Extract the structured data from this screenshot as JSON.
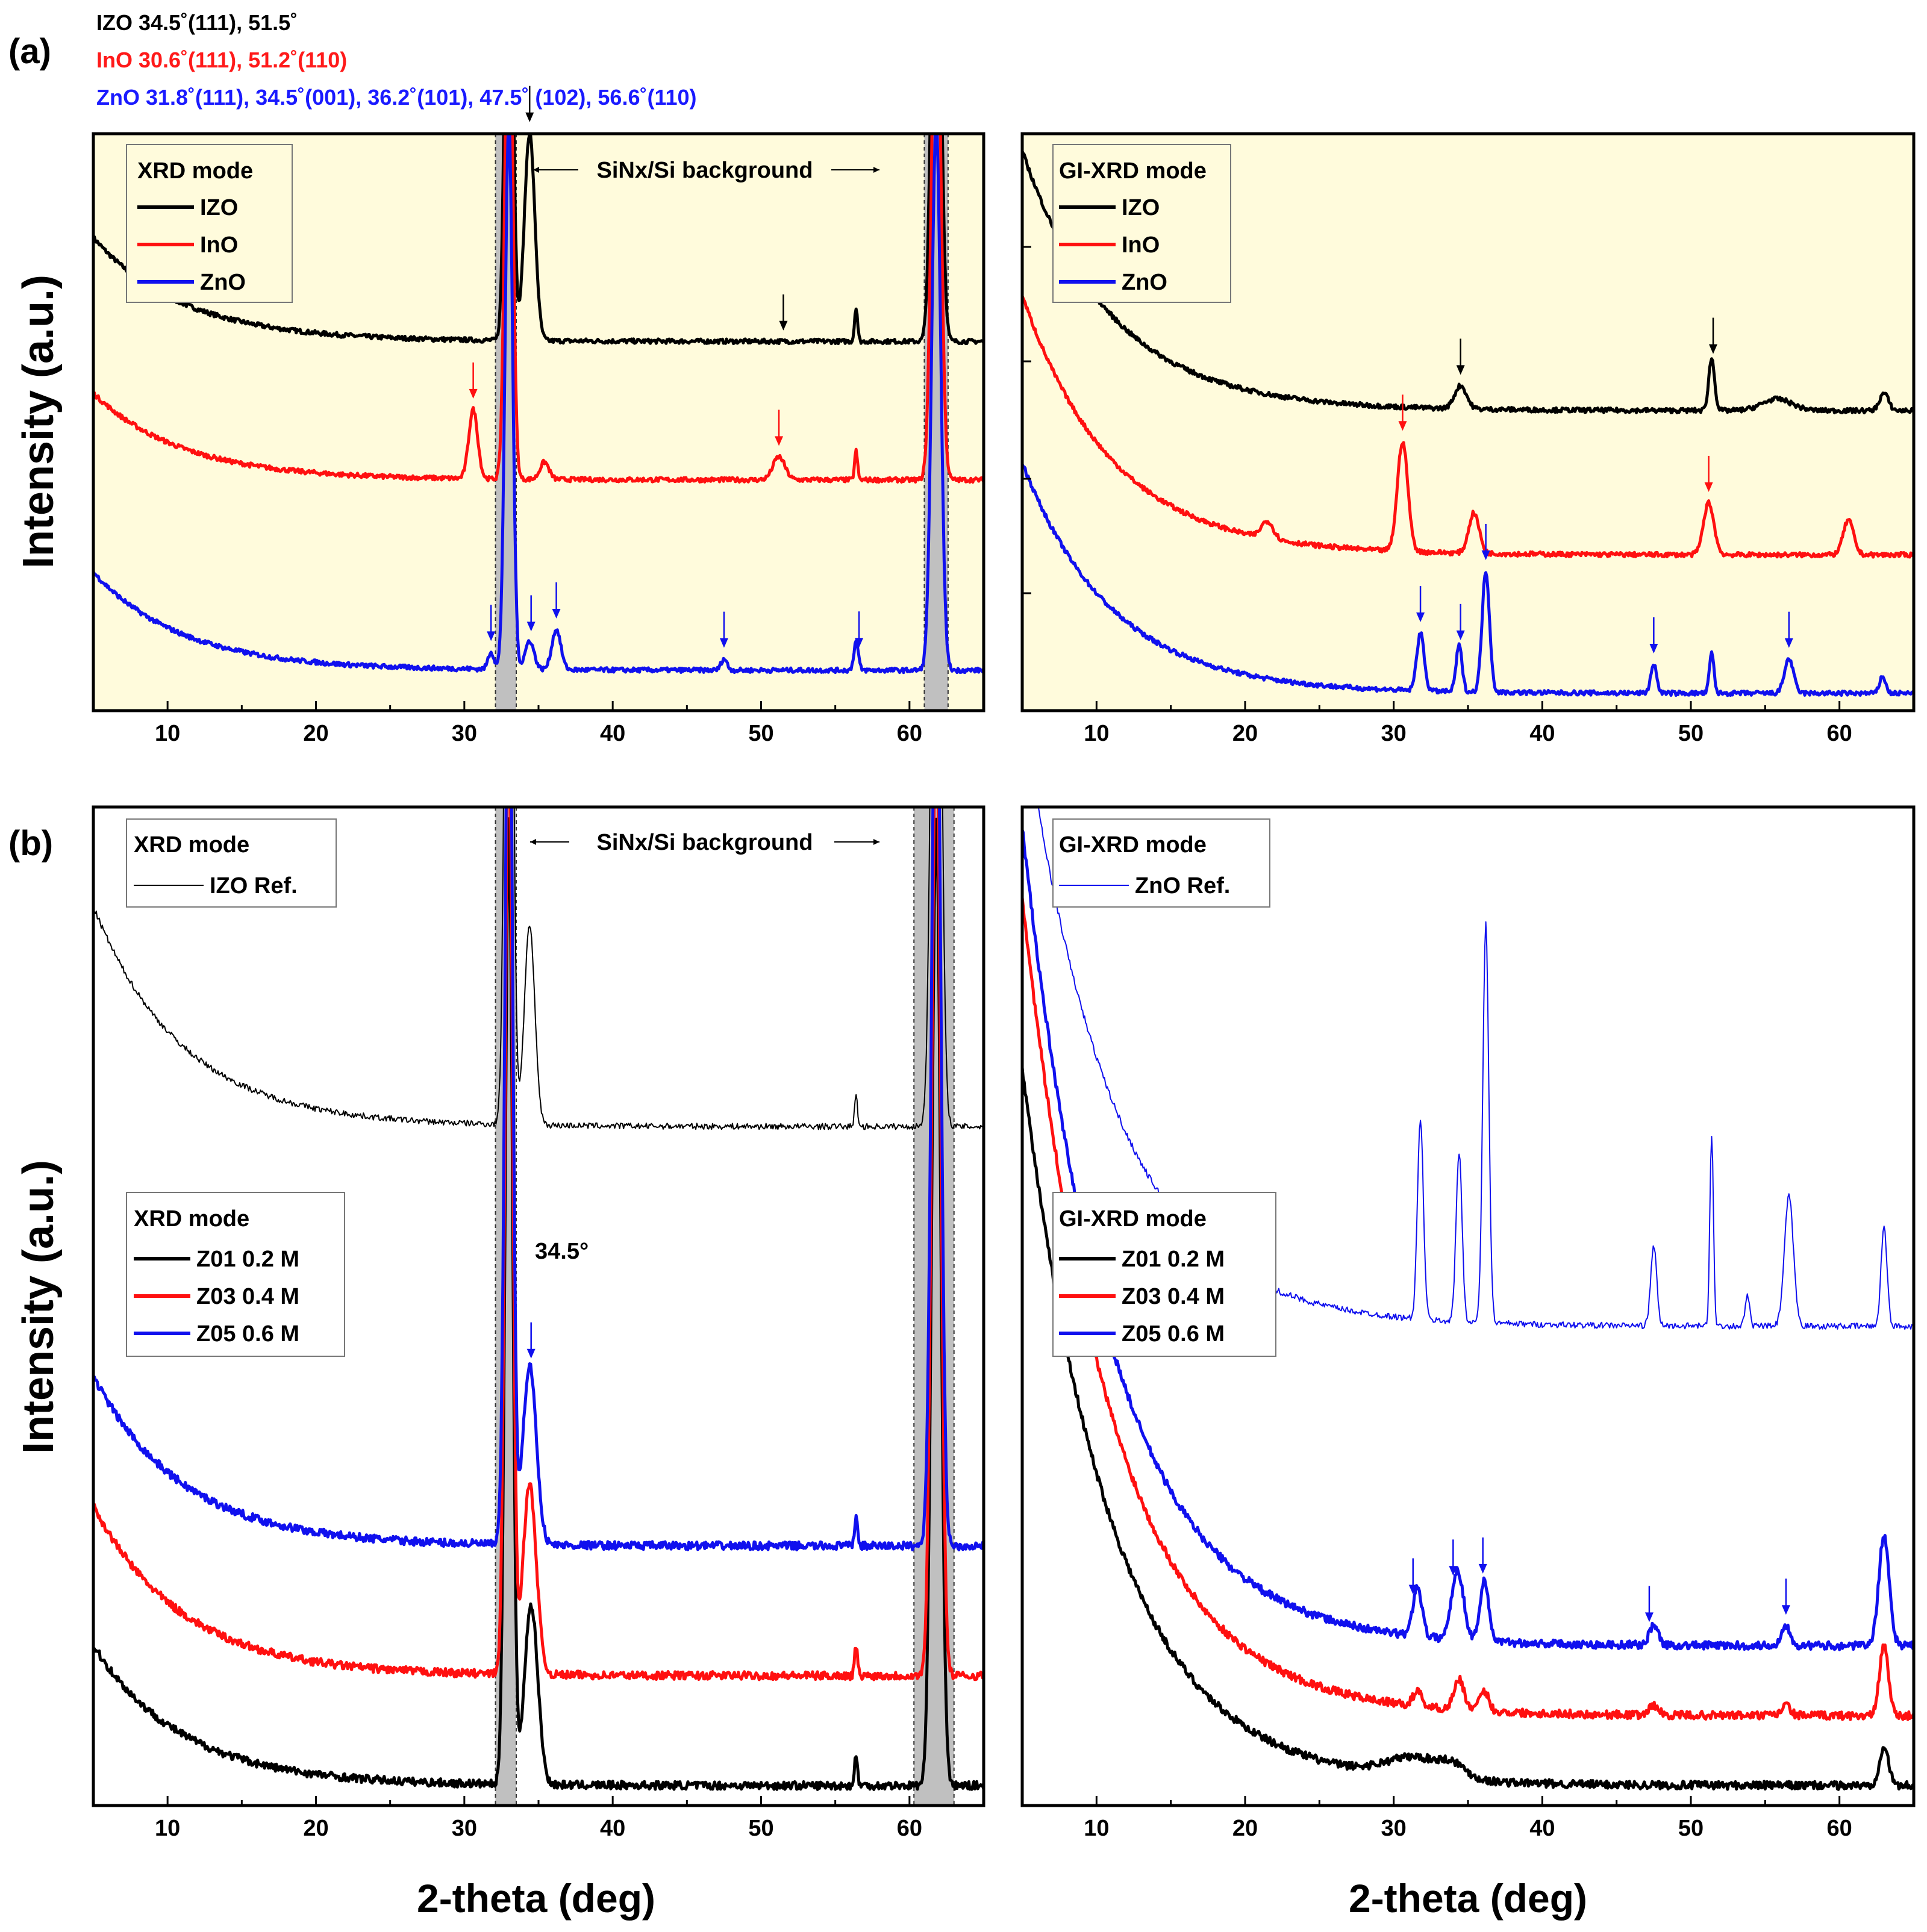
{
  "figure": {
    "panel_a_label": "(a)",
    "panel_b_label": "(b)",
    "header_lines": [
      {
        "text": "IZO 34.5˚(111), 51.5˚",
        "color": "#000000"
      },
      {
        "text": "InO 30.6˚(111), 51.2˚(110)",
        "color": "#ff1a1a"
      },
      {
        "text": "ZnO 31.8˚(111), 34.5˚(001), 36.2˚(101), 47.5˚ (102), 56.6˚(110)",
        "color": "#1a1aff"
      }
    ],
    "ylabel": "Intensity (a.u.)",
    "xlabel": "2-theta (deg)",
    "xticks": [
      "10",
      "20",
      "30",
      "40",
      "50",
      "60"
    ],
    "background_label": "SiNx/Si background",
    "annotation_345": "34.5°",
    "colors": {
      "black": "#000000",
      "red": "#ff1010",
      "blue": "#1010ee",
      "highlight": "#fffbdc",
      "band": "#c0c0c0"
    }
  },
  "chart_data": [
    {
      "id": "a-left",
      "type": "line",
      "mode": "XRD mode",
      "xlabel": "2-theta (deg)",
      "ylabel": "Intensity (a.u.)",
      "xlim": [
        5,
        65
      ],
      "background_bands": [
        [
          32.1,
          33.5
        ],
        [
          61.0,
          62.6
        ]
      ],
      "legend": [
        "IZO",
        "InO",
        "ZnO"
      ],
      "series": [
        {
          "name": "IZO",
          "color": "black",
          "base": 0.64,
          "decay": 0.18,
          "peaks": [
            [
              33.0,
              0.95,
              0.25
            ],
            [
              34.4,
              0.36,
              0.35
            ],
            [
              56.4,
              0.06,
              0.1
            ],
            [
              61.8,
              0.95,
              0.3
            ]
          ],
          "arrows": [
            34.4,
            51.5
          ]
        },
        {
          "name": "InO",
          "color": "red",
          "base": 0.4,
          "decay": 0.15,
          "peaks": [
            [
              30.6,
              0.12,
              0.3
            ],
            [
              33.0,
              0.95,
              0.25
            ],
            [
              35.4,
              0.03,
              0.3
            ],
            [
              51.2,
              0.04,
              0.4
            ],
            [
              56.4,
              0.05,
              0.1
            ],
            [
              61.8,
              0.95,
              0.3
            ]
          ],
          "arrows": [
            30.6,
            51.2
          ]
        },
        {
          "name": "ZnO",
          "color": "blue",
          "base": 0.07,
          "decay": 0.17,
          "peaks": [
            [
              31.8,
              0.03,
              0.2
            ],
            [
              33.0,
              0.95,
              0.25
            ],
            [
              34.4,
              0.05,
              0.3
            ],
            [
              36.2,
              0.07,
              0.3
            ],
            [
              47.5,
              0.02,
              0.2
            ],
            [
              56.4,
              0.05,
              0.15
            ],
            [
              61.8,
              0.95,
              0.3
            ]
          ],
          "arrows": [
            31.8,
            34.5,
            36.2,
            47.5,
            56.6
          ]
        }
      ]
    },
    {
      "id": "a-right",
      "type": "line",
      "mode": "GI-XRD mode",
      "xlabel": "2-theta (deg)",
      "ylabel": "",
      "xlim": [
        5,
        65
      ],
      "legend": [
        "IZO",
        "InO",
        "ZnO"
      ],
      "series": [
        {
          "name": "IZO",
          "color": "black",
          "base": 0.52,
          "decay": 0.45,
          "peaks": [
            [
              34.5,
              0.04,
              0.4
            ],
            [
              51.4,
              0.09,
              0.2
            ],
            [
              55.8,
              0.02,
              1.0
            ],
            [
              63.0,
              0.03,
              0.3
            ]
          ],
          "arrows": [
            34.5,
            51.5
          ]
        },
        {
          "name": "InO",
          "color": "red",
          "base": 0.27,
          "decay": 0.45,
          "peaks": [
            [
              21.5,
              0.03,
              0.4
            ],
            [
              30.6,
              0.19,
              0.35
            ],
            [
              35.4,
              0.07,
              0.35
            ],
            [
              51.2,
              0.09,
              0.35
            ],
            [
              60.6,
              0.06,
              0.35
            ]
          ],
          "arrows": [
            30.6,
            51.2
          ]
        },
        {
          "name": "ZnO",
          "color": "blue",
          "base": 0.03,
          "decay": 0.4,
          "peaks": [
            [
              31.8,
              0.1,
              0.25
            ],
            [
              34.4,
              0.08,
              0.2
            ],
            [
              36.2,
              0.21,
              0.25
            ],
            [
              47.5,
              0.05,
              0.2
            ],
            [
              51.4,
              0.07,
              0.15
            ],
            [
              56.6,
              0.06,
              0.3
            ],
            [
              62.9,
              0.03,
              0.2
            ]
          ],
          "arrows": [
            31.8,
            34.5,
            36.2,
            47.5,
            56.6
          ]
        }
      ]
    },
    {
      "id": "b-left",
      "type": "line",
      "mode": "XRD mode",
      "xlabel": "2-theta (deg)",
      "ylabel": "Intensity (a.u.)",
      "xlim": [
        5,
        65
      ],
      "background_bands": [
        [
          32.1,
          33.5
        ],
        [
          60.3,
          63.0
        ]
      ],
      "ref_legend": [
        "IZO Ref."
      ],
      "legend": [
        "Z01 0.2 M",
        "Z03 0.4 M",
        "Z05 0.6 M"
      ],
      "series": [
        {
          "name": "IZO Ref.",
          "color": "black",
          "thin": true,
          "base": 0.68,
          "decay": 0.22,
          "peaks": [
            [
              33.0,
              0.9,
              0.25
            ],
            [
              34.4,
              0.2,
              0.35
            ],
            [
              56.4,
              0.03,
              0.1
            ],
            [
              61.8,
              0.9,
              0.3
            ]
          ]
        },
        {
          "name": "Z01 0.2 M",
          "color": "black",
          "base": 0.02,
          "decay": 0.14,
          "peaks": [
            [
              33.0,
              0.97,
              0.25
            ],
            [
              34.5,
              0.18,
              0.45
            ],
            [
              56.4,
              0.03,
              0.1
            ],
            [
              61.8,
              0.97,
              0.3
            ]
          ]
        },
        {
          "name": "Z03 0.4 M",
          "color": "red",
          "base": 0.13,
          "decay": 0.17,
          "peaks": [
            [
              33.0,
              0.97,
              0.25
            ],
            [
              34.4,
              0.19,
              0.45
            ],
            [
              56.4,
              0.03,
              0.1
            ],
            [
              61.8,
              0.97,
              0.3
            ]
          ]
        },
        {
          "name": "Z05 0.6 M",
          "color": "blue",
          "base": 0.26,
          "decay": 0.17,
          "peaks": [
            [
              33.0,
              0.97,
              0.25
            ],
            [
              34.4,
              0.18,
              0.45
            ],
            [
              56.4,
              0.03,
              0.1
            ],
            [
              61.8,
              0.97,
              0.3
            ]
          ],
          "arrows": [
            34.5
          ]
        }
      ]
    },
    {
      "id": "b-right",
      "type": "line",
      "mode": "GI-XRD mode",
      "xlabel": "2-theta (deg)",
      "ylabel": "",
      "xlim": [
        5,
        65
      ],
      "ref_legend": [
        "ZnO Ref."
      ],
      "legend": [
        "Z01 0.2 M",
        "Z03 0.4 M",
        "Z05 0.6 M"
      ],
      "series": [
        {
          "name": "ZnO Ref.",
          "color": "blue",
          "thin": true,
          "base": 0.48,
          "decay": 0.62,
          "peaks": [
            [
              31.8,
              0.2,
              0.2
            ],
            [
              34.4,
              0.17,
              0.2
            ],
            [
              36.2,
              0.4,
              0.2
            ],
            [
              47.5,
              0.08,
              0.2
            ],
            [
              51.4,
              0.19,
              0.12
            ],
            [
              53.8,
              0.03,
              0.15
            ],
            [
              56.6,
              0.13,
              0.3
            ],
            [
              63.0,
              0.1,
              0.2
            ]
          ]
        },
        {
          "name": "Z01 0.2 M",
          "color": "black",
          "base": 0.02,
          "decay": 0.72,
          "peaks": [
            [
              31.5,
              0.02,
              2.0
            ],
            [
              34.0,
              0.01,
              0.8
            ],
            [
              63.0,
              0.04,
              0.3
            ]
          ]
        },
        {
          "name": "Z03 0.4 M",
          "color": "red",
          "base": 0.09,
          "decay": 0.82,
          "peaks": [
            [
              31.6,
              0.015,
              0.3
            ],
            [
              34.4,
              0.03,
              0.35
            ],
            [
              36.1,
              0.02,
              0.3
            ],
            [
              47.5,
              0.01,
              0.3
            ],
            [
              56.4,
              0.01,
              0.3
            ],
            [
              63.0,
              0.07,
              0.3
            ]
          ]
        },
        {
          "name": "Z05 0.6 M",
          "color": "blue",
          "base": 0.16,
          "decay": 0.82,
          "peaks": [
            [
              31.6,
              0.05,
              0.3
            ],
            [
              34.3,
              0.07,
              0.4
            ],
            [
              36.1,
              0.06,
              0.3
            ],
            [
              47.5,
              0.02,
              0.3
            ],
            [
              56.4,
              0.02,
              0.3
            ],
            [
              63.0,
              0.11,
              0.35
            ]
          ],
          "arrows": [
            31.3,
            34.0,
            36.0,
            47.2,
            56.4
          ]
        }
      ]
    }
  ]
}
